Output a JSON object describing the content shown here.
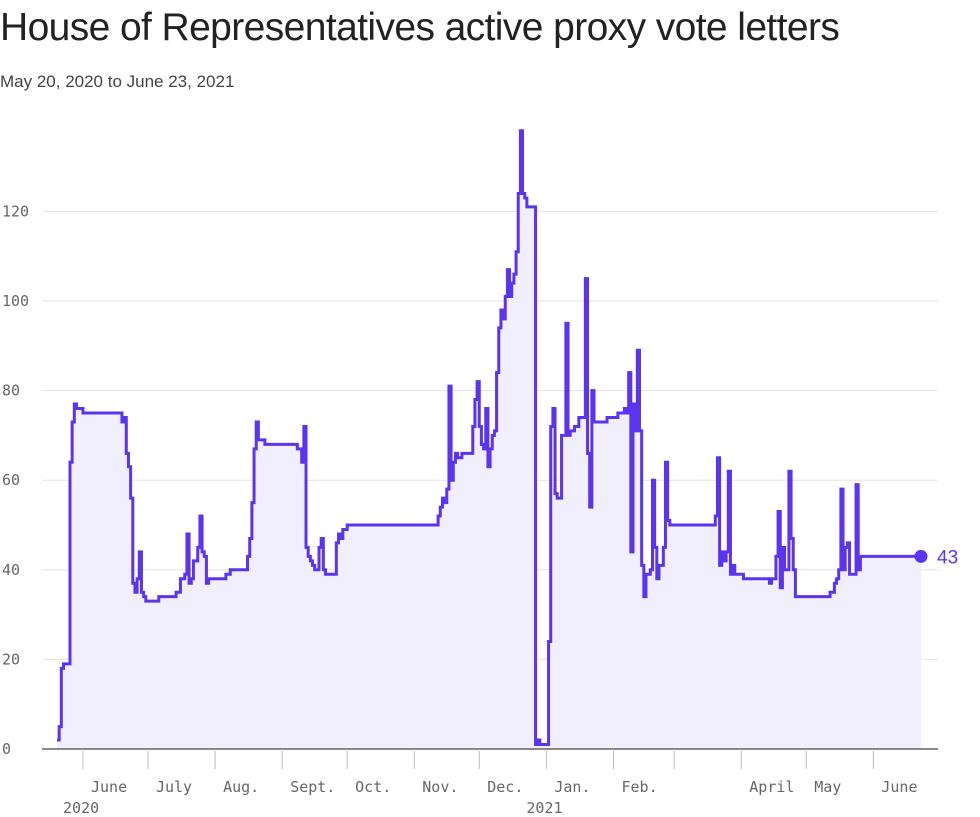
{
  "header": {
    "title": "House of Representatives active proxy vote letters",
    "subtitle": "May 20, 2020 to June 23, 2021"
  },
  "chart_data": {
    "type": "area",
    "title": "House of Representatives active proxy vote letters",
    "subtitle": "May 20, 2020 to June 23, 2021",
    "xlabel": "",
    "ylabel": "",
    "ylim": [
      0,
      140
    ],
    "yticks": [
      0,
      20,
      40,
      60,
      80,
      100,
      120
    ],
    "xlim": [
      "2020-05-20",
      "2021-06-23"
    ],
    "grid": true,
    "step": true,
    "line_color": "#5b34f0",
    "fill_color": "#f1eefd",
    "x_ticks": [
      {
        "date": "2020-06-01",
        "label": "June",
        "sublabel": "2020"
      },
      {
        "date": "2020-07-01",
        "label": "July",
        "sublabel": ""
      },
      {
        "date": "2020-08-01",
        "label": "Aug.",
        "sublabel": ""
      },
      {
        "date": "2020-09-01",
        "label": "Sept.",
        "sublabel": ""
      },
      {
        "date": "2020-10-01",
        "label": "Oct.",
        "sublabel": ""
      },
      {
        "date": "2020-11-01",
        "label": "Nov.",
        "sublabel": ""
      },
      {
        "date": "2020-12-01",
        "label": "Dec.",
        "sublabel": ""
      },
      {
        "date": "2021-01-01",
        "label": "Jan.",
        "sublabel": "2021"
      },
      {
        "date": "2021-02-01",
        "label": "Feb.",
        "sublabel": ""
      },
      {
        "date": "2021-03-01",
        "label": "",
        "sublabel": ""
      },
      {
        "date": "2021-04-01",
        "label": "April",
        "sublabel": ""
      },
      {
        "date": "2021-05-01",
        "label": "May",
        "sublabel": ""
      },
      {
        "date": "2021-06-01",
        "label": "June",
        "sublabel": ""
      }
    ],
    "end_label": "43",
    "points": [
      [
        "2020-05-20",
        2
      ],
      [
        "2020-05-21",
        5
      ],
      [
        "2020-05-22",
        18
      ],
      [
        "2020-05-23",
        19
      ],
      [
        "2020-05-26",
        64
      ],
      [
        "2020-05-27",
        73
      ],
      [
        "2020-05-28",
        77
      ],
      [
        "2020-05-29",
        76
      ],
      [
        "2020-06-01",
        75
      ],
      [
        "2020-06-19",
        73
      ],
      [
        "2020-06-20",
        74
      ],
      [
        "2020-06-21",
        66
      ],
      [
        "2020-06-22",
        63
      ],
      [
        "2020-06-23",
        56
      ],
      [
        "2020-06-24",
        37
      ],
      [
        "2020-06-25",
        35
      ],
      [
        "2020-06-26",
        38
      ],
      [
        "2020-06-27",
        44
      ],
      [
        "2020-06-28",
        35
      ],
      [
        "2020-06-29",
        34
      ],
      [
        "2020-06-30",
        33
      ],
      [
        "2020-07-06",
        34
      ],
      [
        "2020-07-14",
        35
      ],
      [
        "2020-07-16",
        38
      ],
      [
        "2020-07-18",
        39
      ],
      [
        "2020-07-19",
        48
      ],
      [
        "2020-07-20",
        37
      ],
      [
        "2020-07-21",
        38
      ],
      [
        "2020-07-22",
        42
      ],
      [
        "2020-07-24",
        45
      ],
      [
        "2020-07-25",
        52
      ],
      [
        "2020-07-26",
        44
      ],
      [
        "2020-07-27",
        43
      ],
      [
        "2020-07-28",
        37
      ],
      [
        "2020-07-29",
        38
      ],
      [
        "2020-08-06",
        39
      ],
      [
        "2020-08-08",
        40
      ],
      [
        "2020-08-16",
        43
      ],
      [
        "2020-08-17",
        47
      ],
      [
        "2020-08-18",
        55
      ],
      [
        "2020-08-19",
        67
      ],
      [
        "2020-08-20",
        73
      ],
      [
        "2020-08-21",
        69
      ],
      [
        "2020-08-24",
        68
      ],
      [
        "2020-09-08",
        67
      ],
      [
        "2020-09-10",
        64
      ],
      [
        "2020-09-11",
        72
      ],
      [
        "2020-09-12",
        45
      ],
      [
        "2020-09-13",
        43
      ],
      [
        "2020-09-14",
        42
      ],
      [
        "2020-09-15",
        41
      ],
      [
        "2020-09-16",
        40
      ],
      [
        "2020-09-18",
        45
      ],
      [
        "2020-09-19",
        47
      ],
      [
        "2020-09-20",
        40
      ],
      [
        "2020-09-21",
        39
      ],
      [
        "2020-09-26",
        46
      ],
      [
        "2020-09-27",
        48
      ],
      [
        "2020-09-28",
        47
      ],
      [
        "2020-09-29",
        49
      ],
      [
        "2020-10-01",
        50
      ],
      [
        "2020-11-12",
        52
      ],
      [
        "2020-11-13",
        54
      ],
      [
        "2020-11-14",
        56
      ],
      [
        "2020-11-15",
        55
      ],
      [
        "2020-11-16",
        58
      ],
      [
        "2020-11-17",
        81
      ],
      [
        "2020-11-18",
        60
      ],
      [
        "2020-11-19",
        64
      ],
      [
        "2020-11-20",
        66
      ],
      [
        "2020-11-21",
        65
      ],
      [
        "2020-11-23",
        66
      ],
      [
        "2020-11-28",
        72
      ],
      [
        "2020-11-29",
        78
      ],
      [
        "2020-11-30",
        82
      ],
      [
        "2020-12-01",
        72
      ],
      [
        "2020-12-02",
        68
      ],
      [
        "2020-12-03",
        67
      ],
      [
        "2020-12-04",
        76
      ],
      [
        "2020-12-05",
        63
      ],
      [
        "2020-12-06",
        67
      ],
      [
        "2020-12-07",
        70
      ],
      [
        "2020-12-08",
        71
      ],
      [
        "2020-12-09",
        84
      ],
      [
        "2020-12-10",
        94
      ],
      [
        "2020-12-11",
        98
      ],
      [
        "2020-12-12",
        96
      ],
      [
        "2020-12-13",
        101
      ],
      [
        "2020-12-14",
        107
      ],
      [
        "2020-12-15",
        101
      ],
      [
        "2020-12-16",
        104
      ],
      [
        "2020-12-17",
        106
      ],
      [
        "2020-12-18",
        111
      ],
      [
        "2020-12-19",
        124
      ],
      [
        "2020-12-20",
        138
      ],
      [
        "2020-12-21",
        124
      ],
      [
        "2020-12-22",
        123
      ],
      [
        "2020-12-23",
        121
      ],
      [
        "2020-12-26",
        121
      ],
      [
        "2020-12-27",
        1
      ],
      [
        "2020-12-28",
        2
      ],
      [
        "2020-12-29",
        1
      ],
      [
        "2021-01-02",
        24
      ],
      [
        "2021-01-03",
        72
      ],
      [
        "2021-01-04",
        76
      ],
      [
        "2021-01-05",
        57
      ],
      [
        "2021-01-06",
        56
      ],
      [
        "2021-01-08",
        70
      ],
      [
        "2021-01-10",
        95
      ],
      [
        "2021-01-11",
        70
      ],
      [
        "2021-01-12",
        71
      ],
      [
        "2021-01-14",
        72
      ],
      [
        "2021-01-16",
        74
      ],
      [
        "2021-01-19",
        105
      ],
      [
        "2021-01-20",
        66
      ],
      [
        "2021-01-21",
        54
      ],
      [
        "2021-01-22",
        80
      ],
      [
        "2021-01-23",
        73
      ],
      [
        "2021-01-29",
        74
      ],
      [
        "2021-02-03",
        75
      ],
      [
        "2021-02-06",
        76
      ],
      [
        "2021-02-07",
        75
      ],
      [
        "2021-02-08",
        84
      ],
      [
        "2021-02-09",
        44
      ],
      [
        "2021-02-10",
        77
      ],
      [
        "2021-02-11",
        71
      ],
      [
        "2021-02-12",
        89
      ],
      [
        "2021-02-13",
        71
      ],
      [
        "2021-02-14",
        41
      ],
      [
        "2021-02-15",
        34
      ],
      [
        "2021-02-16",
        39
      ],
      [
        "2021-02-18",
        40
      ],
      [
        "2021-02-19",
        60
      ],
      [
        "2021-02-20",
        45
      ],
      [
        "2021-02-21",
        38
      ],
      [
        "2021-02-22",
        41
      ],
      [
        "2021-02-24",
        45
      ],
      [
        "2021-02-25",
        64
      ],
      [
        "2021-02-26",
        51
      ],
      [
        "2021-02-27",
        50
      ],
      [
        "2021-03-20",
        52
      ],
      [
        "2021-03-21",
        65
      ],
      [
        "2021-03-22",
        41
      ],
      [
        "2021-03-23",
        44
      ],
      [
        "2021-03-24",
        42
      ],
      [
        "2021-03-25",
        44
      ],
      [
        "2021-03-26",
        62
      ],
      [
        "2021-03-27",
        39
      ],
      [
        "2021-03-28",
        41
      ],
      [
        "2021-03-29",
        39
      ],
      [
        "2021-04-02",
        38
      ],
      [
        "2021-04-14",
        37
      ],
      [
        "2021-04-15",
        38
      ],
      [
        "2021-04-17",
        43
      ],
      [
        "2021-04-18",
        53
      ],
      [
        "2021-04-19",
        36
      ],
      [
        "2021-04-20",
        45
      ],
      [
        "2021-04-21",
        40
      ],
      [
        "2021-04-23",
        62
      ],
      [
        "2021-04-24",
        47
      ],
      [
        "2021-04-25",
        40
      ],
      [
        "2021-04-26",
        34
      ],
      [
        "2021-05-12",
        35
      ],
      [
        "2021-05-14",
        37
      ],
      [
        "2021-05-15",
        38
      ],
      [
        "2021-05-16",
        40
      ],
      [
        "2021-05-17",
        58
      ],
      [
        "2021-05-18",
        40
      ],
      [
        "2021-05-19",
        45
      ],
      [
        "2021-05-20",
        46
      ],
      [
        "2021-05-21",
        39
      ],
      [
        "2021-05-24",
        59
      ],
      [
        "2021-05-25",
        40
      ],
      [
        "2021-05-26",
        43
      ]
    ]
  }
}
